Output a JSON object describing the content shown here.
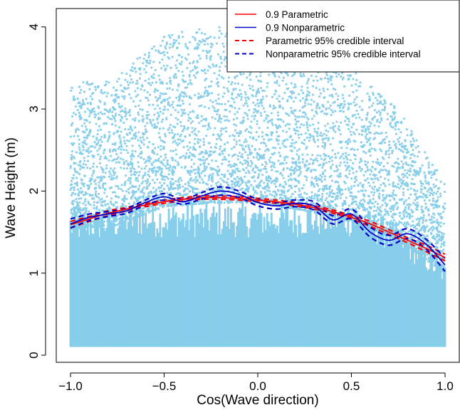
{
  "chart_data": {
    "type": "scatter",
    "xlabel": "Cos(Wave direction)",
    "ylabel": "Wave Height (m)",
    "xlim": [
      -1.05,
      1.05
    ],
    "ylim": [
      0,
      4.3
    ],
    "x_ticks": [
      -1.0,
      -0.5,
      0.0,
      0.5,
      1.0
    ],
    "x_tick_labels": [
      "−1.0",
      "−0.5",
      "0.0",
      "0.5",
      "1.0"
    ],
    "y_ticks": [
      0,
      1,
      2,
      3,
      4
    ],
    "y_tick_labels": [
      "0",
      "1",
      "2",
      "3",
      "4"
    ],
    "grid": false,
    "legend_position": "top-right",
    "colors": {
      "points": "#87CEEB",
      "parametric": "#FF0000",
      "nonparametric": "#0000CC"
    },
    "scatter_density": [
      {
        "x": -1.0,
        "upper": 3.2
      },
      {
        "x": -0.75,
        "upper": 3.3
      },
      {
        "x": -0.5,
        "upper": 3.8
      },
      {
        "x": -0.25,
        "upper": 3.9
      },
      {
        "x": 0.0,
        "upper": 3.9
      },
      {
        "x": 0.25,
        "upper": 3.7
      },
      {
        "x": 0.5,
        "upper": 3.4
      },
      {
        "x": 0.75,
        "upper": 2.9
      },
      {
        "x": 1.0,
        "upper": 2.0
      }
    ],
    "series": [
      {
        "name": "0.9 Parametric",
        "style": "solid",
        "color": "#FF0000",
        "x": [
          -1.0,
          -0.9,
          -0.8,
          -0.7,
          -0.6,
          -0.5,
          -0.4,
          -0.3,
          -0.2,
          -0.1,
          0.0,
          0.1,
          0.2,
          0.3,
          0.4,
          0.5,
          0.6,
          0.7,
          0.8,
          0.9,
          1.0
        ],
        "y": [
          1.59,
          1.66,
          1.73,
          1.78,
          1.83,
          1.87,
          1.9,
          1.92,
          1.92,
          1.91,
          1.89,
          1.87,
          1.84,
          1.8,
          1.75,
          1.68,
          1.6,
          1.5,
          1.4,
          1.3,
          1.19
        ]
      },
      {
        "name": "0.9 Nonparametric",
        "style": "solid",
        "color": "#0000CC",
        "x": [
          -1.0,
          -0.9,
          -0.8,
          -0.7,
          -0.6,
          -0.5,
          -0.4,
          -0.3,
          -0.2,
          -0.1,
          0.0,
          0.1,
          0.2,
          0.3,
          0.4,
          0.5,
          0.6,
          0.7,
          0.8,
          0.9,
          1.0
        ],
        "y": [
          1.6,
          1.68,
          1.72,
          1.76,
          1.86,
          1.93,
          1.87,
          1.94,
          2.0,
          1.96,
          1.86,
          1.82,
          1.85,
          1.82,
          1.65,
          1.72,
          1.5,
          1.4,
          1.48,
          1.35,
          1.1
        ]
      },
      {
        "name": "Parametric 95% credible interval",
        "style": "dashed",
        "color": "#FF0000",
        "lower": [
          1.55,
          1.63,
          1.7,
          1.76,
          1.81,
          1.85,
          1.88,
          1.9,
          1.9,
          1.89,
          1.87,
          1.85,
          1.82,
          1.78,
          1.73,
          1.66,
          1.57,
          1.47,
          1.37,
          1.26,
          1.15
        ],
        "upper": [
          1.63,
          1.69,
          1.76,
          1.8,
          1.85,
          1.89,
          1.92,
          1.94,
          1.94,
          1.93,
          1.91,
          1.89,
          1.86,
          1.82,
          1.77,
          1.7,
          1.63,
          1.53,
          1.43,
          1.34,
          1.23
        ]
      },
      {
        "name": "Nonparametric 95% credible interval",
        "style": "dashed",
        "color": "#0000CC",
        "lower": [
          1.55,
          1.64,
          1.69,
          1.73,
          1.83,
          1.89,
          1.84,
          1.9,
          1.95,
          1.92,
          1.82,
          1.78,
          1.81,
          1.77,
          1.6,
          1.66,
          1.44,
          1.34,
          1.42,
          1.29,
          1.02
        ],
        "upper": [
          1.66,
          1.72,
          1.75,
          1.79,
          1.89,
          1.97,
          1.9,
          1.98,
          2.05,
          2.0,
          1.9,
          1.86,
          1.89,
          1.87,
          1.7,
          1.78,
          1.56,
          1.46,
          1.54,
          1.41,
          1.18
        ]
      }
    ]
  }
}
